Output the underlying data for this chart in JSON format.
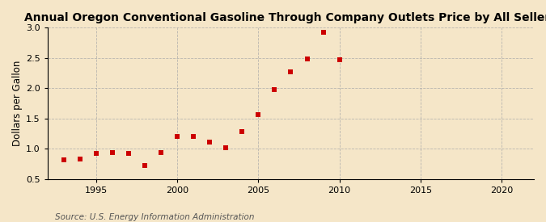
{
  "title": "Annual Oregon Conventional Gasoline Through Company Outlets Price by All Sellers",
  "ylabel": "Dollars per Gallon",
  "source": "Source: U.S. Energy Information Administration",
  "years": [
    1993,
    1994,
    1995,
    1996,
    1997,
    1998,
    1999,
    2000,
    2001,
    2002,
    2003,
    2004,
    2005,
    2006,
    2007,
    2008,
    2009,
    2010
  ],
  "values": [
    0.82,
    0.83,
    0.92,
    0.93,
    0.92,
    0.72,
    0.93,
    1.2,
    1.21,
    1.11,
    1.01,
    1.29,
    1.56,
    1.98,
    2.27,
    2.49,
    2.92,
    2.47
  ],
  "xlim": [
    1992,
    2022
  ],
  "ylim": [
    0.5,
    3.0
  ],
  "xticks": [
    1995,
    2000,
    2005,
    2010,
    2015,
    2020
  ],
  "yticks": [
    0.5,
    1.0,
    1.5,
    2.0,
    2.5,
    3.0
  ],
  "marker_color": "#cc0000",
  "marker_size": 4,
  "bg_color": "#f5e6c8",
  "plot_bg_color": "#f5e6c8",
  "grid_color": "#aaaaaa",
  "spine_color": "#000000",
  "title_fontsize": 10,
  "label_fontsize": 8.5,
  "tick_fontsize": 8,
  "source_fontsize": 7.5
}
